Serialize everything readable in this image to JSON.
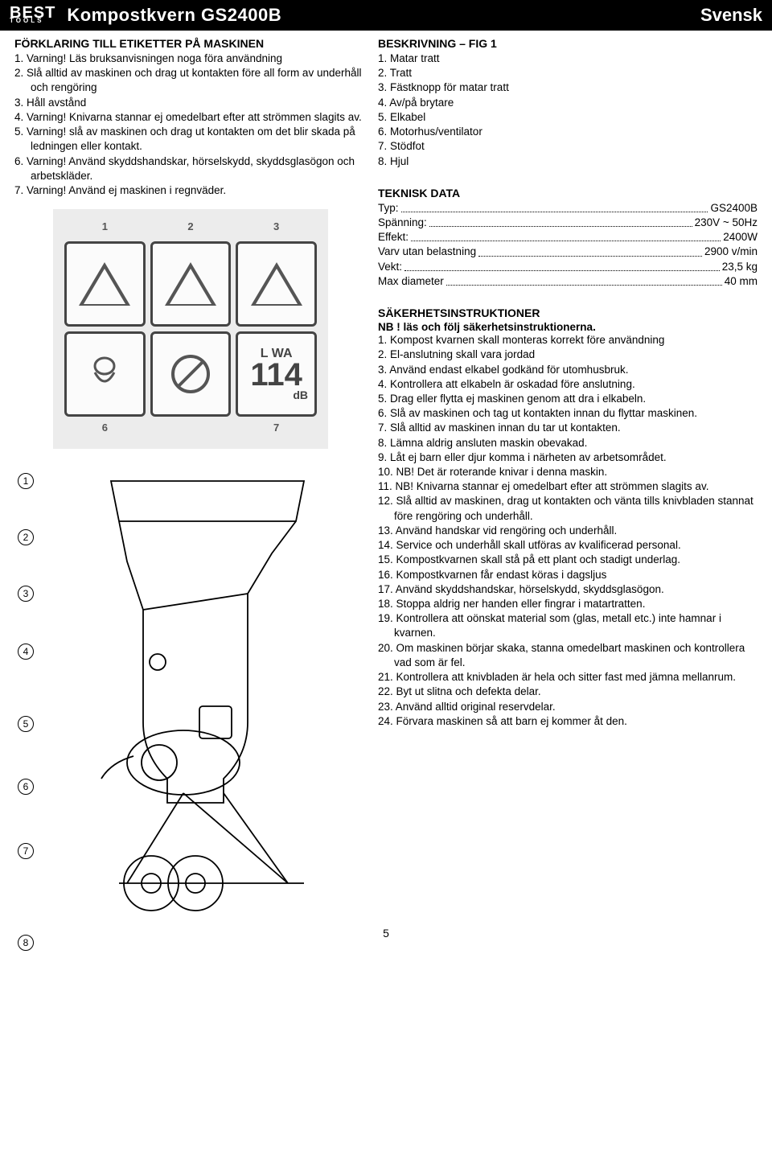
{
  "header": {
    "logo_top": "BEST",
    "logo_bottom": "TOOLS",
    "title": "Kompostkvern GS2400B",
    "lang": "Svensk"
  },
  "left": {
    "labels_title": "FÖRKLARING TILL ETIKETTER PÅ MASKINEN",
    "label_items": [
      "1. Varning! Läs bruksanvisningen noga föra användning",
      "2. Slå alltid av maskinen och drag ut kontakten före all form av underhåll och rengöring",
      "3. Håll avstånd",
      "4. Varning! Knivarna stannar ej omedelbart efter att strömmen slagits av.",
      "5. Varning! slå av maskinen och drag ut kontakten om det blir skada på ledningen eller kontakt.",
      "6. Varning! Använd skyddshandskar, hörselskydd, skyddsglasögon och arbetskläder.",
      "7. Varning! Använd ej maskinen i regnväder."
    ],
    "warning_numbers": {
      "top": [
        "1",
        "2",
        "3"
      ],
      "bottom": [
        "6",
        "7"
      ]
    },
    "lwa_label": "L WA",
    "lwa_value": "114",
    "lwa_unit": "dB",
    "callouts": [
      "1",
      "2",
      "3",
      "4",
      "5",
      "6",
      "7",
      "8"
    ]
  },
  "right": {
    "desc_title": "BESKRIVNING – FIG 1",
    "desc_items": [
      "1. Matar tratt",
      "2. Tratt",
      "3. Fästknopp för matar tratt",
      "4. Av/på brytare",
      "5. Elkabel",
      "6. Motorhus/ventilator",
      "7. Stödfot",
      "8. Hjul"
    ],
    "tech_title": "TEKNISK DATA",
    "tech_rows": [
      {
        "label": "Typ:",
        "val": "GS2400B"
      },
      {
        "label": "Spänning:",
        "val": "230V ~ 50Hz"
      },
      {
        "label": "Effekt:",
        "val": "2400W"
      },
      {
        "label": "Varv utan belastning",
        "val": "2900 v/min"
      },
      {
        "label": "Vekt:",
        "val": "23,5 kg"
      },
      {
        "label": "Max diameter",
        "val": "40 mm"
      }
    ],
    "safety_title": "SÄKERHETSINSTRUKTIONER",
    "safety_sub": "NB ! läs och följ säkerhetsinstruktionerna.",
    "safety_items": [
      "1. Kompost kvarnen skall monteras korrekt före användning",
      "2. El-anslutning skall vara jordad",
      "3. Använd endast elkabel godkänd för utomhusbruk.",
      "4. Kontrollera att elkabeln är oskadad före anslutning.",
      "5. Drag eller flytta ej maskinen genom att dra i elkabeln.",
      "6. Slå av maskinen och tag ut kontakten innan du flyttar maskinen.",
      "7. Slå alltid av maskinen innan du tar ut kontakten.",
      "8. Lämna aldrig ansluten maskin obevakad.",
      "9. Låt ej barn eller djur komma i närheten av arbetsområdet.",
      "10. NB! Det är roterande knivar i denna maskin.",
      "11. NB! Knivarna stannar ej omedelbart efter att strömmen slagits av.",
      "12. Slå alltid av maskinen, drag ut kontakten och vänta tills knivbladen stannat före rengöring och underhåll.",
      "13. Använd handskar vid rengöring och underhåll.",
      "14. Service och underhåll skall utföras av kvalificerad personal.",
      "15. Kompostkvarnen skall stå på ett plant och stadigt underlag.",
      "16. Kompostkvarnen får endast köras i dagsljus",
      "17. Använd skyddshandskar, hörselskydd, skyddsglasögon.",
      "18. Stoppa aldrig ner handen eller fingrar i matartratten.",
      "19. Kontrollera att oönskat material som (glas, metall etc.) inte hamnar i kvarnen.",
      "20. Om maskinen börjar skaka, stanna omedelbart maskinen och kontrollera vad som är fel.",
      "21. Kontrollera att knivbladen är hela och sitter fast med jämna mellanrum.",
      "22. Byt ut slitna och defekta delar.",
      "23. Använd alltid original reservdelar.",
      "24. Förvara maskinen så att barn ej kommer åt den."
    ]
  },
  "page_number": "5",
  "callout_gaps": [
    50,
    50,
    52,
    70,
    58,
    60,
    94
  ],
  "colors": {
    "header_bg": "#000000",
    "header_fg": "#ffffff",
    "body_bg": "#ffffff",
    "text": "#000000",
    "placeholder_bg": "#ececec",
    "icon_border": "#444444"
  }
}
